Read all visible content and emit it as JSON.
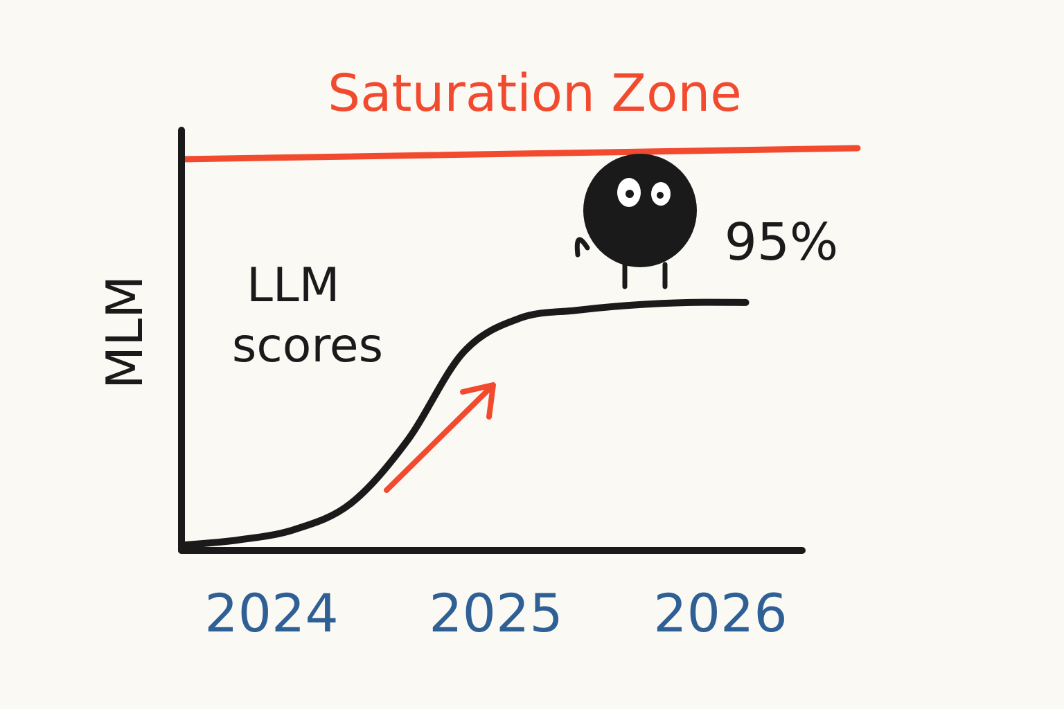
{
  "chart_data": {
    "type": "line",
    "title": "Saturation Zone",
    "ylabel": "MLM",
    "series_label": "LLM\nscores",
    "x_ticks": [
      "2024",
      "2025",
      "2026"
    ],
    "xlim": [
      2024,
      2026.5
    ],
    "ylim": [
      0,
      100
    ],
    "grid": false,
    "saturation_line": {
      "label": "Saturation Zone",
      "y": 110
    },
    "annotation": {
      "text": "95%",
      "x": 2026,
      "y": 95
    },
    "series": [
      {
        "x": [
          2023.75,
          2024.0,
          2024.25,
          2024.5,
          2024.75,
          2025.0,
          2025.25,
          2025.5,
          2025.75,
          2026.0,
          2026.25
        ],
        "y": [
          2,
          4,
          8,
          18,
          42,
          76,
          89,
          92,
          94,
          95,
          95
        ]
      }
    ],
    "colors": {
      "accent": "#f24a2f",
      "ink": "#1a1a1a",
      "tick": "#2e5f95",
      "background": "#fbf9f4"
    },
    "icons": [
      "trend-arrow-icon",
      "blob-character-icon"
    ]
  }
}
